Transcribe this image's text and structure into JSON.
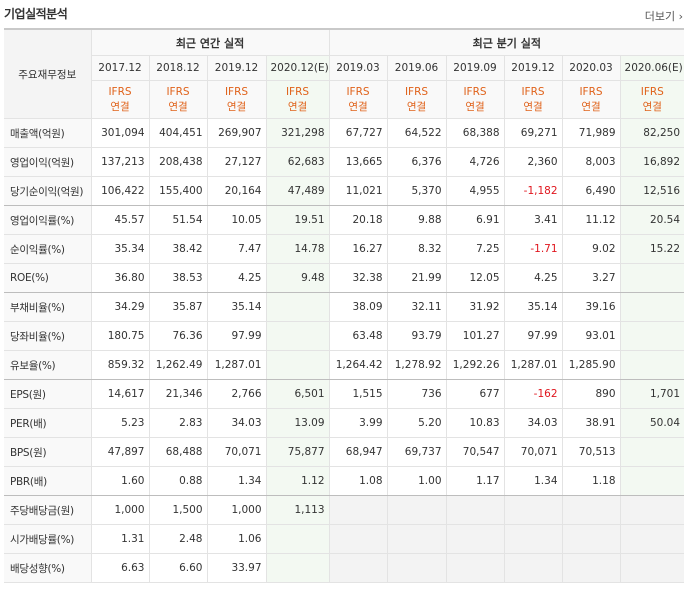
{
  "header": {
    "title": "기업실적분석",
    "more": "더보기"
  },
  "table": {
    "corner": "주요재무정보",
    "groups": [
      "최근 연간 실적",
      "최근 분기 실적"
    ],
    "periods": [
      "2017.12",
      "2018.12",
      "2019.12",
      "2020.12(E)",
      "2019.03",
      "2019.06",
      "2019.09",
      "2019.12",
      "2020.03",
      "2020.06(E)"
    ],
    "standards": [
      [
        "IFRS",
        "연결"
      ],
      [
        "IFRS",
        "연결"
      ],
      [
        "IFRS",
        "연결"
      ],
      [
        "IFRS",
        "연결"
      ],
      [
        "IFRS",
        "연결"
      ],
      [
        "IFRS",
        "연결"
      ],
      [
        "IFRS",
        "연결"
      ],
      [
        "IFRS",
        "연결"
      ],
      [
        "IFRS",
        "연결"
      ],
      [
        "IFRS",
        "연결"
      ]
    ],
    "rows": [
      {
        "label": "매출액(억원)",
        "values": [
          "301,094",
          "404,451",
          "269,907",
          "321,298",
          "67,727",
          "64,522",
          "68,388",
          "69,271",
          "71,989",
          "82,250"
        ]
      },
      {
        "label": "영업이익(억원)",
        "values": [
          "137,213",
          "208,438",
          "27,127",
          "62,683",
          "13,665",
          "6,376",
          "4,726",
          "2,360",
          "8,003",
          "16,892"
        ]
      },
      {
        "label": "당기순이익(억원)",
        "values": [
          "106,422",
          "155,400",
          "20,164",
          "47,489",
          "11,021",
          "5,370",
          "4,955",
          "-1,182",
          "6,490",
          "12,516"
        ]
      },
      {
        "label": "영업이익률(%)",
        "values": [
          "45.57",
          "51.54",
          "10.05",
          "19.51",
          "20.18",
          "9.88",
          "6.91",
          "3.41",
          "11.12",
          "20.54"
        ]
      },
      {
        "label": "순이익률(%)",
        "values": [
          "35.34",
          "38.42",
          "7.47",
          "14.78",
          "16.27",
          "8.32",
          "7.25",
          "-1.71",
          "9.02",
          "15.22"
        ]
      },
      {
        "label": "ROE(%)",
        "values": [
          "36.80",
          "38.53",
          "4.25",
          "9.48",
          "32.38",
          "21.99",
          "12.05",
          "4.25",
          "3.27",
          null
        ]
      },
      {
        "label": "부채비율(%)",
        "values": [
          "34.29",
          "35.87",
          "35.14",
          null,
          "38.09",
          "32.11",
          "31.92",
          "35.14",
          "39.16",
          null
        ]
      },
      {
        "label": "당좌비율(%)",
        "values": [
          "180.75",
          "76.36",
          "97.99",
          null,
          "63.48",
          "93.79",
          "101.27",
          "97.99",
          "93.01",
          null
        ]
      },
      {
        "label": "유보율(%)",
        "values": [
          "859.32",
          "1,262.49",
          "1,287.01",
          null,
          "1,264.42",
          "1,278.92",
          "1,292.26",
          "1,287.01",
          "1,285.90",
          null
        ]
      },
      {
        "label": "EPS(원)",
        "values": [
          "14,617",
          "21,346",
          "2,766",
          "6,501",
          "1,515",
          "736",
          "677",
          "-162",
          "890",
          "1,701"
        ]
      },
      {
        "label": "PER(배)",
        "values": [
          "5.23",
          "2.83",
          "34.03",
          "13.09",
          "3.99",
          "5.20",
          "10.83",
          "34.03",
          "38.91",
          "50.04"
        ]
      },
      {
        "label": "BPS(원)",
        "values": [
          "47,897",
          "68,488",
          "70,071",
          "75,877",
          "68,947",
          "69,737",
          "70,547",
          "70,071",
          "70,513",
          null
        ]
      },
      {
        "label": "PBR(배)",
        "values": [
          "1.60",
          "0.88",
          "1.34",
          "1.12",
          "1.08",
          "1.00",
          "1.17",
          "1.34",
          "1.18",
          null
        ]
      },
      {
        "label": "주당배당금(원)",
        "values": [
          "1,000",
          "1,500",
          "1,000",
          "1,113",
          null,
          null,
          null,
          null,
          null,
          null
        ]
      },
      {
        "label": "시가배당률(%)",
        "values": [
          "1.31",
          "2.48",
          "1.06",
          null,
          null,
          null,
          null,
          null,
          null,
          null
        ]
      },
      {
        "label": "배당성향(%)",
        "values": [
          "6.63",
          "6.60",
          "33.97",
          null,
          null,
          null,
          null,
          null,
          null,
          null
        ]
      }
    ]
  }
}
